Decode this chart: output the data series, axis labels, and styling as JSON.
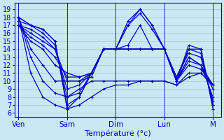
{
  "background_color": "#c8e8f4",
  "grid_color": "#aabbcc",
  "line_color": "#0000cc",
  "xlabel": "Température (°c)",
  "ylim": [
    5.5,
    19.8
  ],
  "yticks": [
    6,
    7,
    8,
    9,
    10,
    11,
    12,
    13,
    14,
    15,
    16,
    17,
    18,
    19
  ],
  "xtick_labels": [
    "Ven",
    "Sam",
    "Dim",
    "Lun",
    "M"
  ],
  "xtick_positions": [
    0,
    24,
    48,
    72,
    96
  ],
  "xlim": [
    -2,
    100
  ],
  "linewidth": 0.9,
  "marker_size": 3.5,
  "scenarios": [
    {
      "x": [
        0,
        6,
        12,
        18,
        24,
        30,
        36,
        42,
        48,
        54,
        60,
        66,
        72,
        78,
        84,
        90,
        96
      ],
      "y": [
        18,
        17,
        16.5,
        15,
        6.5,
        8,
        11,
        14,
        14,
        17,
        19,
        17,
        14,
        10,
        14,
        14,
        6.5
      ]
    },
    {
      "x": [
        0,
        6,
        12,
        18,
        24,
        30,
        36,
        42,
        48,
        54,
        60,
        66,
        72,
        78,
        84,
        90,
        96
      ],
      "y": [
        18,
        17,
        16.5,
        15,
        7,
        8,
        11,
        14,
        14,
        17.5,
        19,
        17,
        14,
        10,
        14.5,
        14,
        7
      ]
    },
    {
      "x": [
        0,
        6,
        12,
        18,
        24,
        30,
        36,
        42,
        48,
        54,
        60,
        66,
        72,
        78,
        84,
        90,
        96
      ],
      "y": [
        17.5,
        17,
        16,
        14.5,
        8,
        8.5,
        11,
        14,
        14,
        17,
        18.5,
        16.5,
        14,
        10.5,
        14,
        13.5,
        7
      ]
    },
    {
      "x": [
        0,
        6,
        12,
        18,
        24,
        30,
        36,
        42,
        48,
        54,
        60,
        66,
        72,
        78,
        84,
        90,
        96
      ],
      "y": [
        17,
        16.5,
        15.5,
        14,
        9,
        9.5,
        11,
        14,
        14,
        14.5,
        17,
        14,
        14,
        10.5,
        13.5,
        13,
        7.5
      ]
    },
    {
      "x": [
        0,
        6,
        12,
        18,
        24,
        30,
        36,
        42,
        48,
        54,
        60,
        66,
        72,
        78,
        84,
        90,
        96
      ],
      "y": [
        17,
        16,
        15,
        14,
        10,
        10,
        11,
        14,
        14,
        14,
        14,
        14,
        14,
        10,
        13,
        12,
        8
      ]
    },
    {
      "x": [
        0,
        6,
        12,
        18,
        24,
        30,
        36,
        42,
        48,
        54,
        60,
        66,
        72,
        78,
        84,
        90,
        96
      ],
      "y": [
        17,
        15.5,
        14.5,
        13,
        10.5,
        10.5,
        11,
        14,
        14,
        14,
        14,
        14,
        14,
        10,
        13,
        12,
        9
      ]
    },
    {
      "x": [
        0,
        6,
        12,
        18,
        24,
        30,
        36,
        42,
        48,
        54,
        60,
        66,
        72,
        78,
        84,
        90,
        96
      ],
      "y": [
        17,
        15,
        14,
        12,
        11,
        10.5,
        11,
        14,
        14,
        14,
        14,
        14,
        14,
        10,
        12.5,
        12,
        9.5
      ]
    },
    {
      "x": [
        0,
        6,
        12,
        18,
        24,
        30,
        36,
        42,
        48,
        54,
        60,
        66,
        72,
        78,
        84,
        90,
        96
      ],
      "y": [
        18,
        14,
        12,
        10,
        10,
        10,
        10.5,
        14,
        14,
        14,
        14,
        14,
        14,
        10,
        12,
        11.5,
        9.5
      ]
    },
    {
      "x": [
        0,
        6,
        12,
        18,
        24,
        30,
        36,
        42,
        48,
        54,
        60,
        66,
        72,
        78,
        84,
        90,
        96
      ],
      "y": [
        18,
        13,
        10,
        8.5,
        8,
        9,
        10,
        10,
        10,
        10,
        10,
        10,
        10,
        9.5,
        11,
        11,
        9.5
      ]
    },
    {
      "x": [
        0,
        6,
        12,
        18,
        24,
        30,
        36,
        42,
        48,
        54,
        60,
        66,
        72,
        78,
        84,
        90,
        96
      ],
      "y": [
        18,
        11,
        8,
        7,
        6.5,
        7,
        8,
        9,
        9.5,
        9.5,
        10,
        10,
        10,
        9.5,
        10.5,
        11,
        9.5
      ]
    }
  ]
}
